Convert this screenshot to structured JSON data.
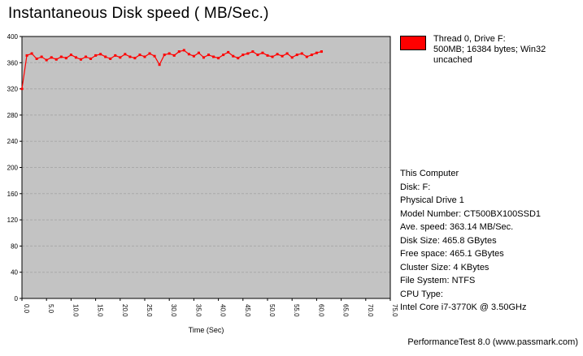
{
  "title": "Instantaneous Disk speed ( MB/Sec.)",
  "legend": {
    "line1": "Thread 0, Drive F:",
    "line2": "500MB; 16384 bytes; Win32 uncached",
    "swatch_color": "#ff0000"
  },
  "info": {
    "lines": [
      "This Computer",
      "Disk: F:",
      "Physical Drive 1",
      "Model Number: CT500BX100SSD1",
      "Ave. speed: 363.14 MB/Sec.",
      "Disk Size: 465.8 GBytes",
      "Free space: 465.1 GBytes",
      "Cluster Size: 4 KBytes",
      "File System: NTFS",
      "CPU Type:",
      "Intel Core i7-3770K @ 3.50GHz"
    ]
  },
  "footer": "PerformanceTest 8.0 (www.passmark.com)",
  "chart_data": {
    "type": "line",
    "title": "Instantaneous Disk speed ( MB/Sec.)",
    "xlabel": "Time (Sec)",
    "ylabel": "",
    "xlim": [
      0,
      75
    ],
    "ylim": [
      0,
      400
    ],
    "x_ticks": [
      "0.0",
      "5.0",
      "10.0",
      "15.0",
      "20.0",
      "25.0",
      "30.0",
      "35.0",
      "40.0",
      "45.0",
      "50.0",
      "55.0",
      "60.0",
      "65.0",
      "70.0",
      "75.0"
    ],
    "y_ticks": [
      0,
      40,
      80,
      120,
      160,
      200,
      240,
      280,
      320,
      360,
      400
    ],
    "grid": "horizontal",
    "plot_bg": "#c3c3c3",
    "grid_color": "#a9a9a9",
    "legend_position": "top-right",
    "series": [
      {
        "name": "Thread 0, Drive F: 500MB; 16384 bytes; Win32 uncached",
        "color": "#ff0000",
        "x": [
          0,
          1,
          2,
          3,
          4,
          5,
          6,
          7,
          8,
          9,
          10,
          11,
          12,
          13,
          14,
          15,
          16,
          17,
          18,
          19,
          20,
          21,
          22,
          23,
          24,
          25,
          26,
          27,
          28,
          29,
          30,
          31,
          32,
          33,
          34,
          35,
          36,
          37,
          38,
          39,
          40,
          41,
          42,
          43,
          44,
          45,
          46,
          47,
          48,
          49,
          50,
          51,
          52,
          53,
          54,
          55,
          56,
          57,
          58,
          59,
          60,
          61
        ],
        "y": [
          320,
          371,
          374,
          366,
          369,
          364,
          368,
          365,
          369,
          367,
          372,
          368,
          365,
          369,
          366,
          371,
          373,
          369,
          366,
          371,
          368,
          373,
          369,
          367,
          372,
          369,
          374,
          370,
          357,
          372,
          374,
          371,
          377,
          379,
          373,
          370,
          375,
          368,
          372,
          369,
          367,
          372,
          376,
          370,
          367,
          372,
          374,
          377,
          372,
          375,
          371,
          369,
          373,
          370,
          374,
          368,
          372,
          374,
          369,
          372,
          375,
          377
        ]
      }
    ]
  }
}
